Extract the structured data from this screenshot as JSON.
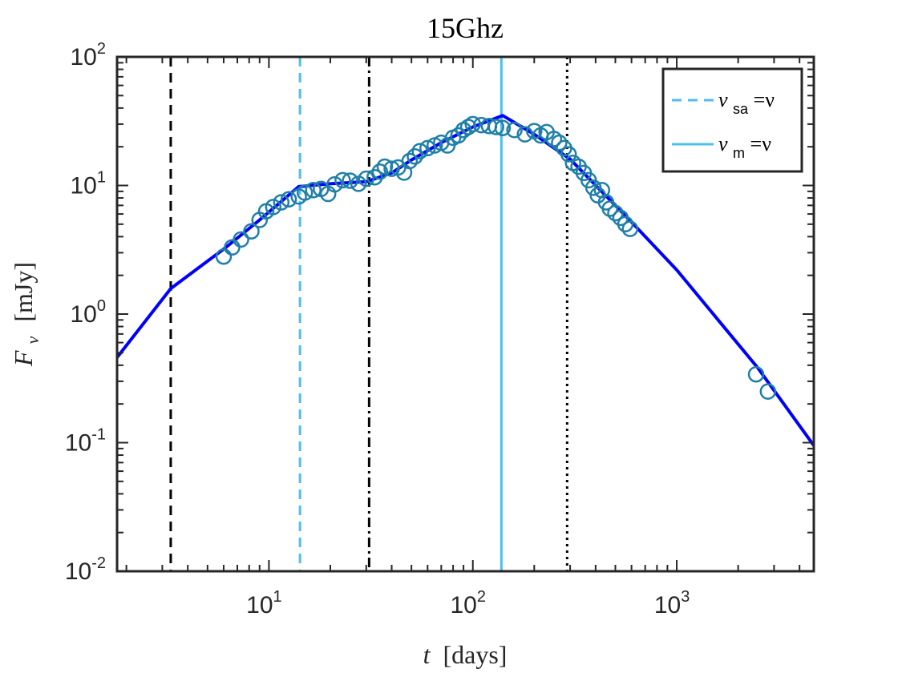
{
  "chart_data": {
    "type": "line",
    "title": "15Ghz",
    "xlabel": {
      "var": "t",
      "unit": "[days]"
    },
    "ylabel": {
      "var": "F",
      "sub": "ν",
      "unit": "[mJy]"
    },
    "xscale": "log",
    "yscale": "log",
    "xlim": [
      1.8,
      4700
    ],
    "ylim": [
      0.01,
      100
    ],
    "xticks": [
      10,
      100,
      1000
    ],
    "xtick_labels": [
      {
        "base": "10",
        "exp": "1"
      },
      {
        "base": "10",
        "exp": "2"
      },
      {
        "base": "10",
        "exp": "3"
      }
    ],
    "yticks": [
      0.01,
      0.1,
      1,
      10,
      100
    ],
    "ytick_labels": [
      {
        "base": "10",
        "exp": "-2"
      },
      {
        "base": "10",
        "exp": "-1"
      },
      {
        "base": "10",
        "exp": "0"
      },
      {
        "base": "10",
        "exp": "1"
      },
      {
        "base": "10",
        "exp": "2"
      }
    ],
    "grid": false,
    "legend_position": "top-right",
    "model_curve": {
      "color": "#0000ff",
      "x": [
        1.8,
        3.3,
        6,
        9,
        14,
        20,
        30,
        40,
        50,
        70,
        100,
        140,
        200,
        300,
        600,
        1000,
        2500,
        4700
      ],
      "y": [
        0.46,
        1.58,
        3.2,
        5.4,
        9.8,
        10.3,
        10.7,
        12.5,
        15.8,
        21.5,
        28.5,
        35,
        25,
        16,
        5.2,
        2.2,
        0.38,
        0.095
      ]
    },
    "observations": {
      "color": "#1f7fa8",
      "x": [
        6,
        6.6,
        7.3,
        8.2,
        9,
        9.7,
        10.5,
        11.5,
        12.5,
        14,
        15,
        16.5,
        18,
        19.5,
        21,
        23,
        25,
        27.5,
        30,
        33,
        35,
        37,
        40,
        43,
        46,
        49,
        52,
        55,
        60,
        65,
        70,
        75,
        80,
        85,
        90,
        95,
        100,
        110,
        120,
        130,
        140,
        160,
        180,
        200,
        215,
        230,
        250,
        265,
        280,
        295,
        310,
        330,
        350,
        370,
        390,
        410,
        430,
        450,
        470,
        500,
        530,
        560,
        590,
        2450,
        2800
      ],
      "y": [
        2.8,
        3.3,
        3.8,
        4.4,
        5.4,
        6.3,
        6.8,
        7.4,
        7.8,
        8.2,
        8.8,
        9.2,
        9.4,
        8.6,
        10.2,
        11,
        10.9,
        10.3,
        11.3,
        11.6,
        12.8,
        14,
        13.5,
        13.8,
        12.6,
        15.5,
        16.8,
        18.5,
        19.5,
        20.5,
        21.5,
        20.5,
        23.5,
        24.5,
        27,
        28.5,
        30,
        29.5,
        29,
        28.5,
        28,
        27,
        25,
        26.5,
        24.5,
        26,
        23,
        21.5,
        19.5,
        17.5,
        15,
        14,
        12.5,
        11,
        9.6,
        8.4,
        9.2,
        7.4,
        6.6,
        6.1,
        5.6,
        5.0,
        4.6,
        0.34,
        0.25
      ]
    },
    "vlines": [
      {
        "x": 3.3,
        "color": "#000000",
        "style": "dashed"
      },
      {
        "x": 14.2,
        "color": "#4dbeee",
        "style": "dashed",
        "legend": {
          "sym": "ν",
          "sub": "sa",
          "rhs": "=ν"
        }
      },
      {
        "x": 31,
        "color": "#000000",
        "style": "dashdot"
      },
      {
        "x": 138,
        "color": "#4dbeee",
        "style": "solid",
        "legend": {
          "sym": "ν",
          "sub": "m",
          "rhs": "=ν"
        }
      },
      {
        "x": 290,
        "color": "#000000",
        "style": "dotted"
      }
    ]
  }
}
